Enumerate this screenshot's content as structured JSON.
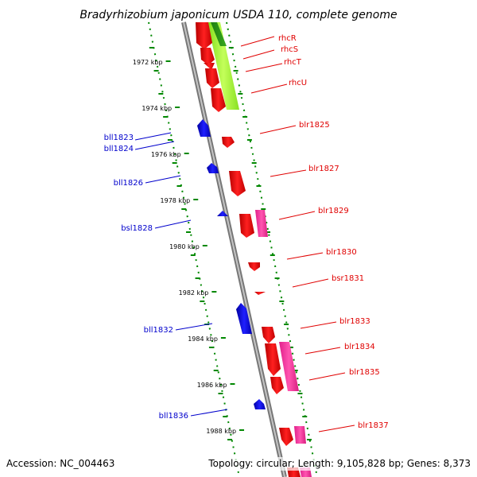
{
  "header": {
    "title": "Bradyrhizobium japonicum USDA 110, complete genome"
  },
  "footer": {
    "accession": "Accession: NC_004463",
    "summary": "Topology: circular; Length: 9,105,828 bp; Genes: 8,373"
  },
  "scale": {
    "unit": "kbp",
    "ticks": [
      {
        "label": "1972 kbp"
      },
      {
        "label": "1974 kbp"
      },
      {
        "label": "1976 kbp"
      },
      {
        "label": "1978 kbp"
      },
      {
        "label": "1980 kbp"
      },
      {
        "label": "1982 kbp"
      },
      {
        "label": "1984 kbp"
      },
      {
        "label": "1986 kbp"
      },
      {
        "label": "1988 kbp"
      }
    ]
  },
  "genes": {
    "forward": [
      "rhcR",
      "rhcS",
      "rhcT",
      "rhcU",
      "blr1825",
      "blr1827",
      "blr1829",
      "blr1830",
      "bsr1831",
      "blr1833",
      "blr1834",
      "blr1835",
      "blr1837"
    ],
    "reverse": [
      "bll1823",
      "bll1824",
      "bll1826",
      "bsl1828",
      "bll1832",
      "bll1836"
    ]
  },
  "colors": {
    "forward_gene": "#ff0000",
    "reverse_gene": "#0000ff",
    "cds_feature": "#ff3399",
    "operon_feature": "#99ff33",
    "axis": "#888888",
    "tick": "#008800"
  }
}
